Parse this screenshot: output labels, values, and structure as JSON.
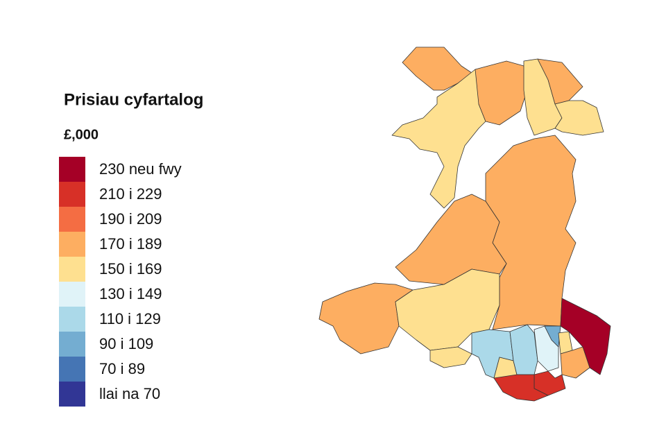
{
  "legend": {
    "title": "Prisiau cyfartalog",
    "subtitle": "£,000",
    "items": [
      {
        "label": "230 neu fwy",
        "color": "#a50026"
      },
      {
        "label": "210 i 229",
        "color": "#d73027"
      },
      {
        "label": "190 i 209",
        "color": "#f46d43"
      },
      {
        "label": "170 i 189",
        "color": "#fdae61"
      },
      {
        "label": "150 i 169",
        "color": "#fee090"
      },
      {
        "label": "130 i 149",
        "color": "#e0f3f8"
      },
      {
        "label": "110 i 129",
        "color": "#abd9e9"
      },
      {
        "label": "90 i 109",
        "color": "#74add1"
      },
      {
        "label": "70 i 89",
        "color": "#4575b4"
      },
      {
        "label": "llai na 70",
        "color": "#313695"
      }
    ]
  }
}
